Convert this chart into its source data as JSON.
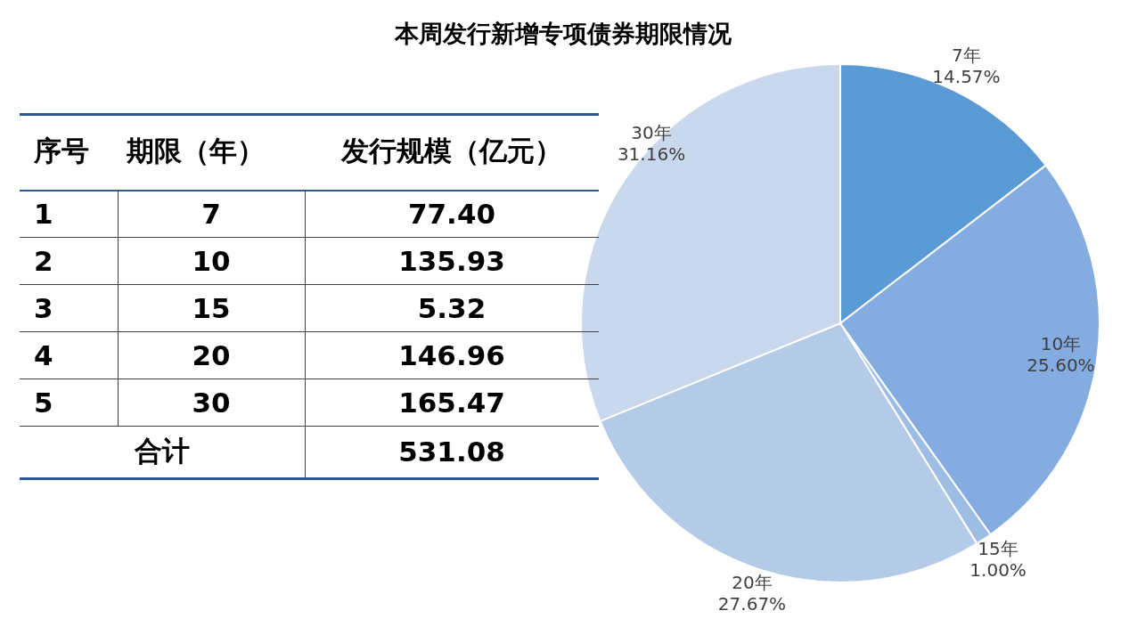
{
  "chart_data": {
    "type": "pie",
    "title": "本周发行新增专项债券期限情况",
    "categories": [
      "7年",
      "10年",
      "15年",
      "20年",
      "30年"
    ],
    "values": [
      14.57,
      25.6,
      1.0,
      27.67,
      31.16
    ],
    "value_labels": [
      "14.57%",
      "25.60%",
      "1.00%",
      "27.67%",
      "31.16%"
    ],
    "colors": [
      "#5b9bd5",
      "#84ace0",
      "#9dbde5",
      "#b4cbe8",
      "#c9d8ed"
    ],
    "legend": false,
    "annotations": [
      "序号",
      "期限（年）",
      "发行规模（亿元）",
      "1",
      "7",
      "77.40",
      "2",
      "10",
      "135.93",
      "3",
      "15",
      "5.32",
      "4",
      "20",
      "146.96",
      "5",
      "30",
      "165.47",
      "合计",
      "531.08"
    ]
  }
}
